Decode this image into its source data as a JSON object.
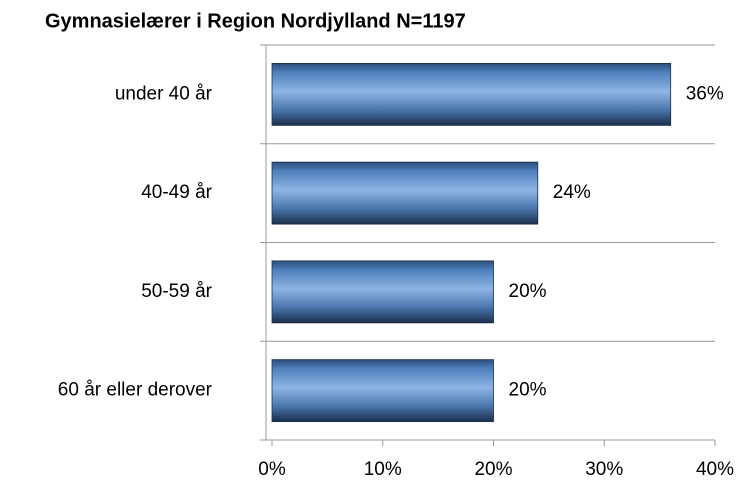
{
  "chart_data": {
    "type": "bar",
    "orientation": "horizontal",
    "title": "Gymnasielærer i Region Nordjylland N=1197",
    "categories": [
      "under 40 år",
      "40-49 år",
      "50-59 år",
      "60 år eller derover"
    ],
    "values": [
      36,
      24,
      20,
      20
    ],
    "value_labels": [
      "36%",
      "24%",
      "20%",
      "20%"
    ],
    "color": "#4f81bd",
    "xlim": [
      0,
      40
    ],
    "xticks": [
      {
        "value": 0,
        "label": "0%"
      },
      {
        "value": 10,
        "label": "10%"
      },
      {
        "value": 20,
        "label": "20%"
      },
      {
        "value": 30,
        "label": "30%"
      },
      {
        "value": 40,
        "label": "40%"
      }
    ],
    "grid": false
  }
}
